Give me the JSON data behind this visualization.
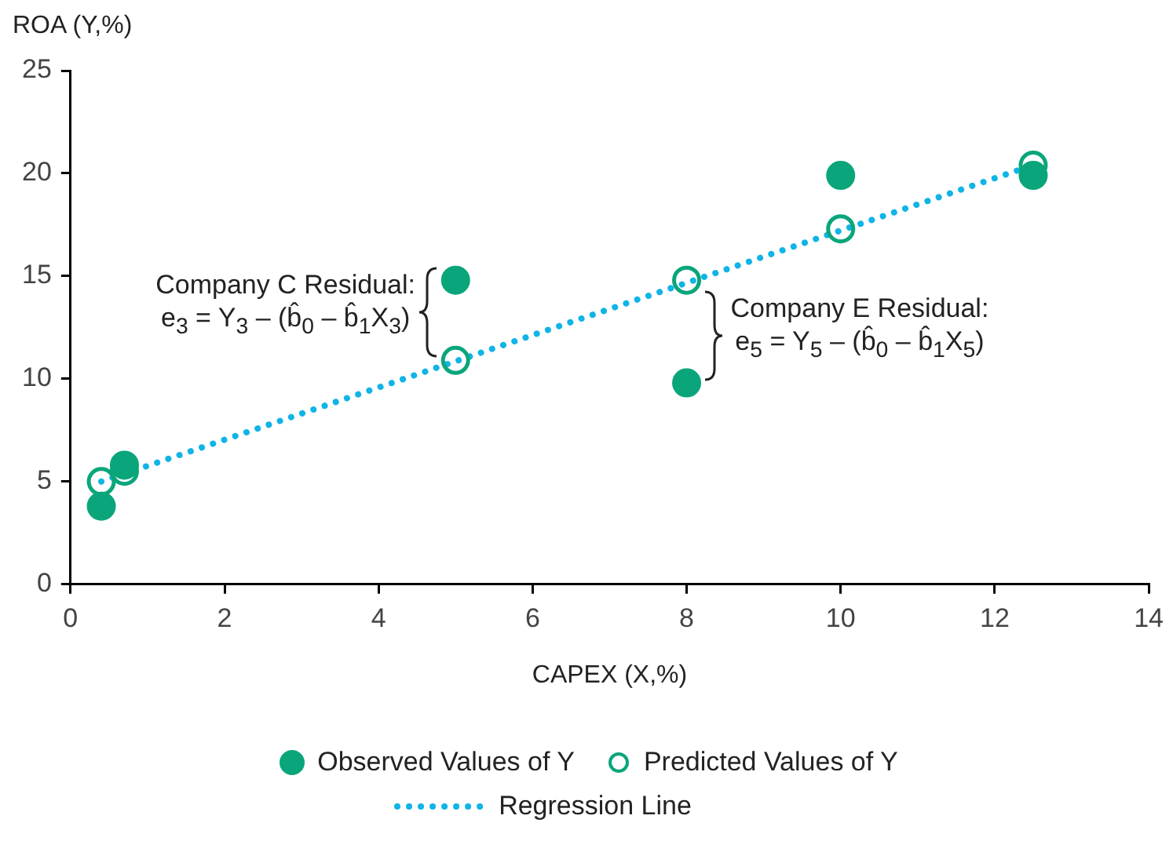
{
  "chart_data": {
    "type": "scatter",
    "xlabel": "CAPEX (X,%)",
    "ylabel": "ROA (Y,%)",
    "xlim": [
      0,
      14
    ],
    "xticks": [
      0,
      2,
      4,
      6,
      8,
      10,
      12,
      14
    ],
    "ylim": [
      0,
      25
    ],
    "yticks": [
      0,
      5,
      10,
      15,
      20,
      25
    ],
    "grid": false,
    "legend": "bottom",
    "series": [
      {
        "name": "Observed Values of Y",
        "marker": "circle",
        "color": "#0aa57b",
        "x": [
          0.4,
          0.7,
          5.0,
          8.0,
          10.0,
          12.5
        ],
        "values": [
          3.8,
          5.8,
          14.8,
          9.8,
          19.9,
          19.9
        ]
      },
      {
        "name": "Predicted Values of Y",
        "type": "scatter",
        "marker": "circle",
        "color": "#0aa57b",
        "x": [
          0.4,
          0.7,
          5.0,
          8.0,
          10.0,
          12.5
        ],
        "values": [
          5.0,
          5.5,
          10.9,
          14.8,
          17.3,
          20.4
        ]
      },
      {
        "name": "Regression Line",
        "type": "line",
        "marker": "none",
        "line_style": "dotted",
        "color": "#10b4e6",
        "x": [
          0.4,
          12.5
        ],
        "values": [
          5.0,
          20.4
        ]
      }
    ],
    "annotations": [
      {
        "text": "Company C Residual:",
        "x": 5.0,
        "y": 10.9
      },
      "e$_{3}$ = Y$_{3}$ – (b̂$_{0}$ – b̂$_{1}$X$_{3}$)",
      {
        "text": "Company E Residual:",
        "x": 8.0,
        "y": 14.8
      },
      "e$_{5}$ = Y$_{5}$ – (b̂$_{0}$ – b̂$_{1}$X$_{5}$)"
    ]
  }
}
